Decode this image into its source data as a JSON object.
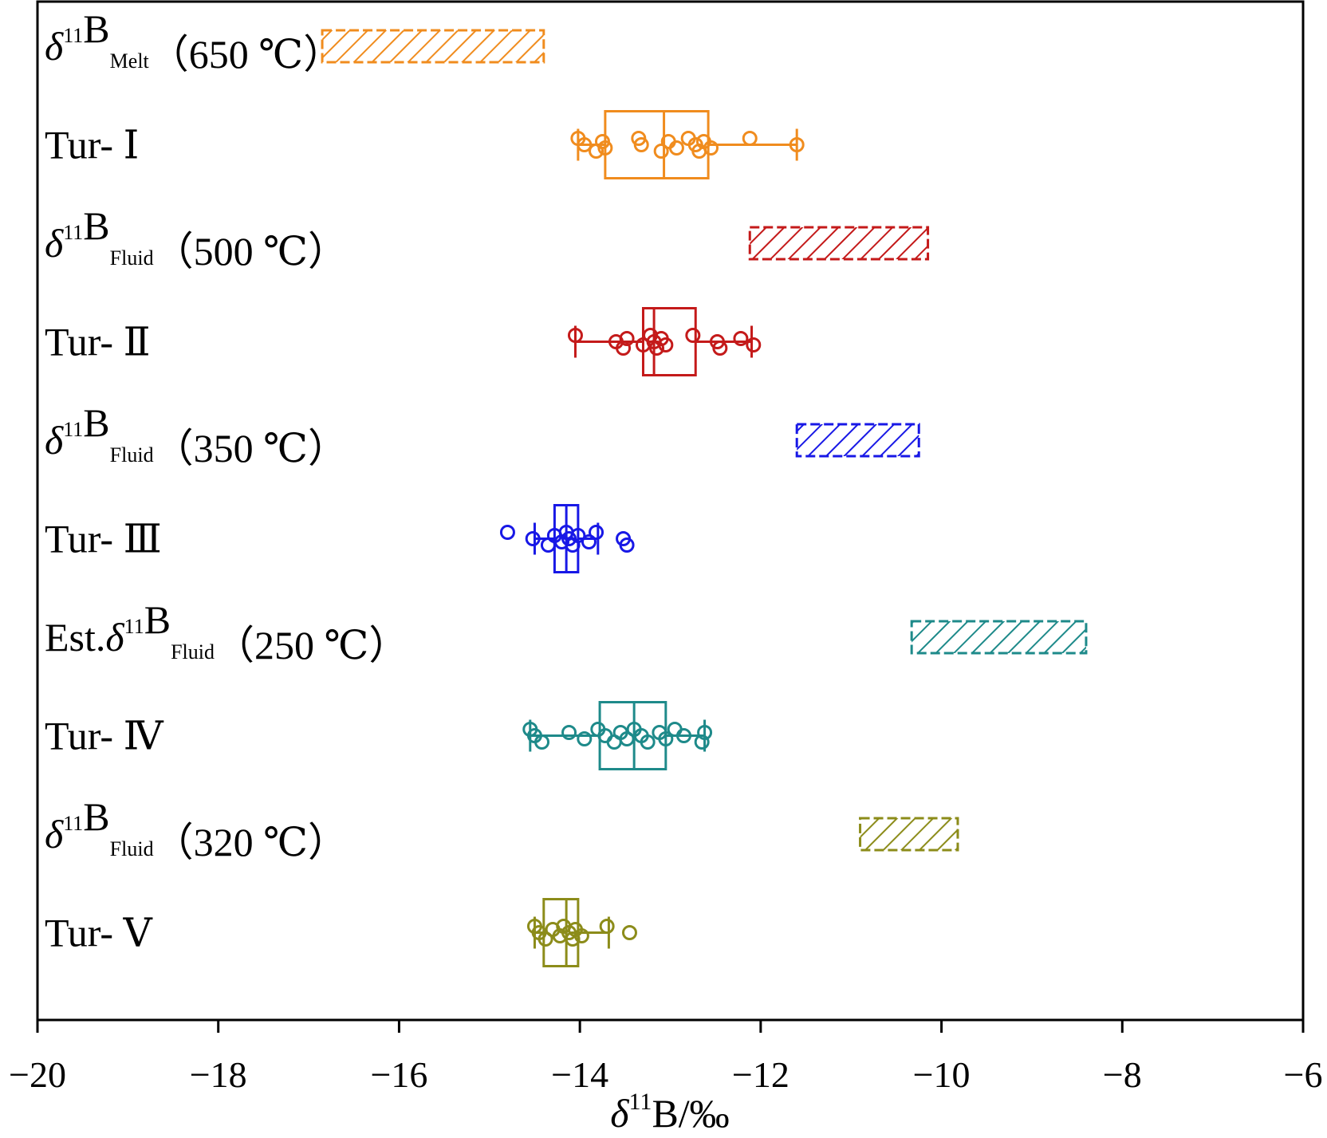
{
  "chart_data": {
    "type": "box",
    "xlabel": "δ11B/‰",
    "xlim": [
      -20,
      -6
    ],
    "xticks": [
      -20,
      -18,
      -16,
      -14,
      -12,
      -10,
      -8,
      -6
    ],
    "grid": false,
    "legend": "none",
    "rows": [
      {
        "kind": "range",
        "label_parts": [
          {
            "t": "δ",
            "i": true
          },
          {
            "t": "11",
            "sup": true
          },
          {
            "t": "B"
          },
          {
            "t": "Melt",
            "sub": true
          },
          {
            "t": "（650 ℃）"
          }
        ],
        "color": "#f08c1e",
        "range": [
          -16.85,
          -14.4
        ]
      },
      {
        "kind": "box",
        "label_parts": [
          {
            "t": "Tur- Ⅰ"
          }
        ],
        "color": "#f08c1e",
        "q1": -13.72,
        "median": -13.07,
        "q3": -12.58,
        "whisker_low": -14.02,
        "whisker_high": -11.6,
        "points": [
          -14.02,
          -13.95,
          -13.82,
          -13.75,
          -13.72,
          -13.35,
          -13.32,
          -13.1,
          -13.02,
          -12.93,
          -12.8,
          -12.72,
          -12.68,
          -12.63,
          -12.55,
          -12.12,
          -11.6
        ]
      },
      {
        "kind": "range",
        "label_parts": [
          {
            "t": "δ",
            "i": true
          },
          {
            "t": "11",
            "sup": true
          },
          {
            "t": "B"
          },
          {
            "t": "Fluid",
            "sub": true
          },
          {
            "t": "（500 ℃）"
          }
        ],
        "color": "#c41a1a",
        "range": [
          -12.12,
          -10.15
        ]
      },
      {
        "kind": "box",
        "label_parts": [
          {
            "t": "Tur- Ⅱ"
          }
        ],
        "color": "#c41a1a",
        "q1": -13.3,
        "median": -13.18,
        "q3": -12.72,
        "whisker_low": -14.05,
        "whisker_high": -12.1,
        "points": [
          -14.05,
          -13.6,
          -13.52,
          -13.48,
          -13.3,
          -13.22,
          -13.18,
          -13.15,
          -13.1,
          -13.05,
          -12.75,
          -12.48,
          -12.45,
          -12.22,
          -12.08
        ]
      },
      {
        "kind": "range",
        "label_parts": [
          {
            "t": "δ",
            "i": true
          },
          {
            "t": "11",
            "sup": true
          },
          {
            "t": "B"
          },
          {
            "t": "Fluid",
            "sub": true
          },
          {
            "t": "（350 ℃）"
          }
        ],
        "color": "#1818e6",
        "range": [
          -11.6,
          -10.25
        ]
      },
      {
        "kind": "box",
        "label_parts": [
          {
            "t": "Tur- Ⅲ"
          }
        ],
        "color": "#1818e6",
        "q1": -14.28,
        "median": -14.15,
        "q3": -14.02,
        "whisker_low": -14.5,
        "whisker_high": -13.8,
        "points": [
          -14.8,
          -14.52,
          -14.35,
          -14.28,
          -14.2,
          -14.15,
          -14.12,
          -14.08,
          -14.02,
          -13.9,
          -13.82,
          -13.52,
          -13.48
        ]
      },
      {
        "kind": "range",
        "label_parts": [
          {
            "t": "Est."
          },
          {
            "t": "δ",
            "i": true
          },
          {
            "t": "11",
            "sup": true
          },
          {
            "t": "B"
          },
          {
            "t": "Fluid",
            "sub": true
          },
          {
            "t": "（250 ℃）"
          }
        ],
        "color": "#1e8a8a",
        "range": [
          -10.33,
          -8.4
        ]
      },
      {
        "kind": "box",
        "label_parts": [
          {
            "t": "Tur- Ⅳ"
          }
        ],
        "color": "#1e8a8a",
        "q1": -13.78,
        "median": -13.4,
        "q3": -13.05,
        "whisker_low": -14.55,
        "whisker_high": -12.62,
        "points": [
          -14.55,
          -14.5,
          -14.42,
          -14.12,
          -13.95,
          -13.8,
          -13.72,
          -13.62,
          -13.55,
          -13.48,
          -13.4,
          -13.32,
          -13.25,
          -13.12,
          -13.05,
          -12.95,
          -12.85,
          -12.65,
          -12.62
        ]
      },
      {
        "kind": "range",
        "label_parts": [
          {
            "t": "δ",
            "i": true
          },
          {
            "t": "11",
            "sup": true
          },
          {
            "t": "B"
          },
          {
            "t": "Fluid",
            "sub": true
          },
          {
            "t": "（320 ℃）"
          }
        ],
        "color": "#8c8c1a",
        "range": [
          -10.9,
          -9.82
        ]
      },
      {
        "kind": "box",
        "label_parts": [
          {
            "t": "Tur- Ⅴ"
          }
        ],
        "color": "#8c8c1a",
        "q1": -14.4,
        "median": -14.15,
        "q3": -14.02,
        "whisker_low": -14.5,
        "whisker_high": -13.68,
        "points": [
          -14.5,
          -14.45,
          -14.38,
          -14.3,
          -14.22,
          -14.18,
          -14.12,
          -14.08,
          -14.05,
          -13.98,
          -13.7,
          -13.45
        ]
      }
    ]
  }
}
